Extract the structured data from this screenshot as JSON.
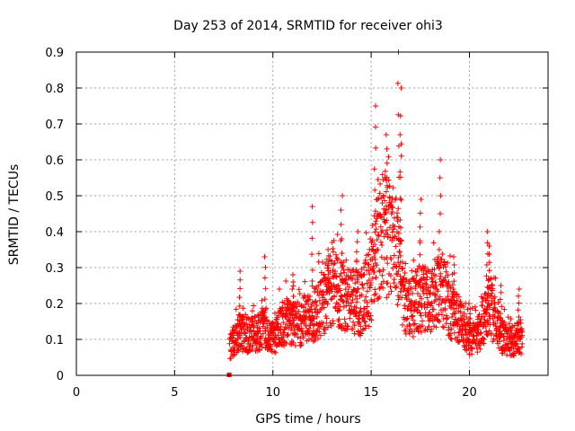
{
  "chart_data": {
    "type": "scatter",
    "title": "Day 253 of 2014, SRMTID for receiver ohi3",
    "xlabel": "GPS time / hours",
    "ylabel": "SRMTID / TECUs",
    "xlim": [
      0,
      24
    ],
    "ylim": [
      0,
      0.9
    ],
    "xticks": [
      "0",
      "5",
      "10",
      "15",
      "20"
    ],
    "xtick_values": [
      0,
      5,
      10,
      15,
      20
    ],
    "yticks": [
      "0",
      "0.1",
      "0.2",
      "0.3",
      "0.4",
      "0.5",
      "0.6",
      "0.7",
      "0.8",
      "0.9"
    ],
    "ytick_values": [
      0,
      0.1,
      0.2,
      0.3,
      0.4,
      0.5,
      0.6,
      0.7,
      0.8,
      0.9
    ],
    "grid": true,
    "marker": "plus",
    "color": "#ff0000",
    "trend_knots": [
      [
        7.8,
        0.08
      ],
      [
        8.3,
        0.12
      ],
      [
        9.0,
        0.11
      ],
      [
        9.5,
        0.13
      ],
      [
        10.0,
        0.1
      ],
      [
        10.5,
        0.15
      ],
      [
        11.0,
        0.14
      ],
      [
        11.5,
        0.15
      ],
      [
        12.0,
        0.16
      ],
      [
        12.5,
        0.2
      ],
      [
        13.0,
        0.25
      ],
      [
        13.5,
        0.22
      ],
      [
        14.0,
        0.21
      ],
      [
        14.5,
        0.2
      ],
      [
        15.0,
        0.26
      ],
      [
        15.3,
        0.38
      ],
      [
        15.7,
        0.4
      ],
      [
        16.2,
        0.36
      ],
      [
        16.6,
        0.22
      ],
      [
        17.0,
        0.18
      ],
      [
        17.5,
        0.22
      ],
      [
        18.0,
        0.2
      ],
      [
        18.5,
        0.25
      ],
      [
        19.0,
        0.18
      ],
      [
        19.5,
        0.16
      ],
      [
        20.0,
        0.1
      ],
      [
        20.5,
        0.12
      ],
      [
        21.0,
        0.2
      ],
      [
        21.5,
        0.12
      ],
      [
        22.0,
        0.09
      ],
      [
        22.7,
        0.11
      ]
    ],
    "spikes": [
      [
        8.3,
        0.29
      ],
      [
        9.6,
        0.33
      ],
      [
        11.0,
        0.28
      ],
      [
        12.0,
        0.47
      ],
      [
        12.8,
        0.35
      ],
      [
        13.5,
        0.5
      ],
      [
        14.3,
        0.4
      ],
      [
        15.2,
        0.75
      ],
      [
        15.8,
        0.67
      ],
      [
        16.4,
        0.9
      ],
      [
        16.5,
        0.8
      ],
      [
        16.5,
        0.67
      ],
      [
        17.5,
        0.49
      ],
      [
        18.5,
        0.6
      ],
      [
        19.2,
        0.33
      ],
      [
        20.0,
        0.2
      ],
      [
        20.9,
        0.4
      ],
      [
        21.0,
        0.36
      ],
      [
        21.6,
        0.25
      ],
      [
        22.5,
        0.24
      ]
    ],
    "baseline_points": [
      [
        7.75,
        0.0
      ],
      [
        7.8,
        0.0
      ]
    ],
    "points_per_hour": 120
  }
}
